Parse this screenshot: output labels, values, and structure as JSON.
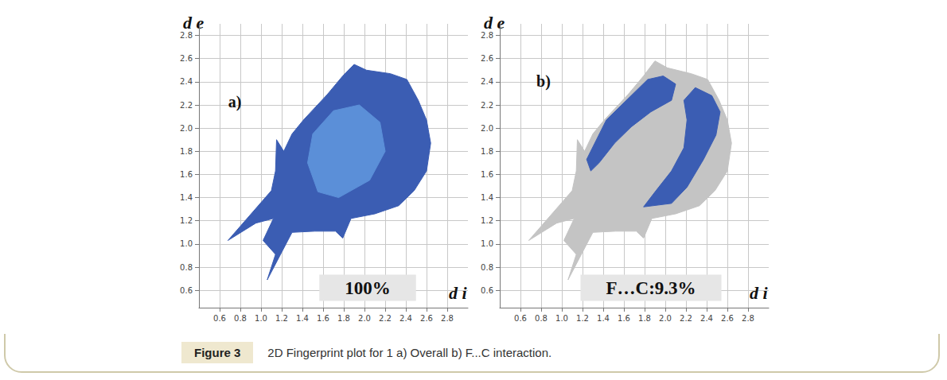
{
  "chart_data": [
    {
      "type": "polygon",
      "panel_label": "a)",
      "annotations": [
        "100%"
      ],
      "xlabel": "d i",
      "ylabel": "d e",
      "xlim": [
        0.4,
        3.0
      ],
      "ylim": [
        0.45,
        2.9
      ],
      "xticks": [
        0.6,
        0.8,
        {
          "value": 1.0,
          "label": "1.0"
        },
        1.2,
        1.4,
        1.6,
        1.8,
        {
          "value": 2.0,
          "label": "2.0"
        },
        2.2,
        2.4,
        2.6,
        2.8
      ],
      "yticks": [
        0.6,
        0.8,
        {
          "value": 1.0,
          "label": "1.0"
        },
        1.2,
        1.4,
        1.6,
        1.8,
        {
          "value": 2.0,
          "label": "2.0"
        },
        2.2,
        2.4,
        2.6,
        2.8
      ],
      "grid": true,
      "series": [
        {
          "color": "#3b5db3",
          "values": [
            [
              0.68,
              1.03
            ],
            [
              1.1,
              1.46
            ],
            [
              1.14,
              1.63
            ],
            [
              1.15,
              1.9
            ],
            [
              1.22,
              1.8
            ],
            [
              1.3,
              1.95
            ],
            [
              1.41,
              2.07
            ],
            [
              1.64,
              2.29
            ],
            [
              1.79,
              2.45
            ],
            [
              1.9,
              2.55
            ],
            [
              2.02,
              2.5
            ],
            [
              2.25,
              2.47
            ],
            [
              2.41,
              2.42
            ],
            [
              2.52,
              2.24
            ],
            [
              2.6,
              2.07
            ],
            [
              2.64,
              1.87
            ],
            [
              2.6,
              1.63
            ],
            [
              2.48,
              1.46
            ],
            [
              2.33,
              1.33
            ],
            [
              2.1,
              1.26
            ],
            [
              1.87,
              1.22
            ],
            [
              1.79,
              1.05
            ],
            [
              1.72,
              1.11
            ],
            [
              1.52,
              1.11
            ],
            [
              1.3,
              1.1
            ],
            [
              1.06,
              0.69
            ],
            [
              1.14,
              0.91
            ],
            [
              1.02,
              1.03
            ],
            [
              1.12,
              1.22
            ],
            [
              0.95,
              1.18
            ]
          ]
        },
        {
          "color": "#5b8fd8",
          "values": [
            [
              1.55,
              1.45
            ],
            [
              1.75,
              1.4
            ],
            [
              2.05,
              1.55
            ],
            [
              2.2,
              1.8
            ],
            [
              2.15,
              2.05
            ],
            [
              1.95,
              2.2
            ],
            [
              1.7,
              2.15
            ],
            [
              1.5,
              1.95
            ],
            [
              1.45,
              1.7
            ]
          ]
        }
      ]
    },
    {
      "type": "polygon",
      "panel_label": "b)",
      "annotations": [
        "F…C:9.3%"
      ],
      "xlabel": "d i",
      "ylabel": "d e",
      "xlim": [
        0.4,
        3.0
      ],
      "ylim": [
        0.45,
        2.9
      ],
      "xticks": [
        0.6,
        0.8,
        {
          "value": 1.0,
          "label": "1.0"
        },
        1.2,
        1.4,
        1.6,
        1.8,
        {
          "value": 2.0,
          "label": "2.0"
        },
        2.2,
        2.4,
        2.6,
        2.8
      ],
      "yticks": [
        0.6,
        0.8,
        {
          "value": 1.0,
          "label": "1.0"
        },
        1.2,
        1.4,
        1.6,
        1.8,
        {
          "value": 2.0,
          "label": "2.0"
        },
        2.2,
        2.4,
        2.6,
        2.8
      ],
      "grid": true,
      "series": [
        {
          "color": "#c4c4c4",
          "values": [
            [
              0.68,
              1.03
            ],
            [
              1.1,
              1.46
            ],
            [
              1.14,
              1.63
            ],
            [
              1.15,
              1.9
            ],
            [
              1.22,
              1.8
            ],
            [
              1.3,
              1.95
            ],
            [
              1.41,
              2.07
            ],
            [
              1.64,
              2.29
            ],
            [
              1.79,
              2.45
            ],
            [
              1.9,
              2.58
            ],
            [
              2.02,
              2.52
            ],
            [
              2.25,
              2.47
            ],
            [
              2.41,
              2.42
            ],
            [
              2.52,
              2.24
            ],
            [
              2.6,
              2.07
            ],
            [
              2.64,
              1.87
            ],
            [
              2.6,
              1.63
            ],
            [
              2.48,
              1.46
            ],
            [
              2.33,
              1.33
            ],
            [
              2.1,
              1.26
            ],
            [
              1.87,
              1.22
            ],
            [
              1.79,
              1.05
            ],
            [
              1.72,
              1.11
            ],
            [
              1.52,
              1.11
            ],
            [
              1.3,
              1.1
            ],
            [
              1.06,
              0.69
            ],
            [
              1.14,
              0.91
            ],
            [
              1.02,
              1.03
            ],
            [
              1.12,
              1.22
            ],
            [
              0.95,
              1.18
            ]
          ]
        },
        {
          "color": "#3b5db3",
          "values": [
            [
              1.24,
              1.73
            ],
            [
              1.43,
              2.07
            ],
            [
              1.67,
              2.28
            ],
            [
              1.83,
              2.42
            ],
            [
              1.98,
              2.45
            ],
            [
              2.1,
              2.38
            ],
            [
              2.06,
              2.24
            ],
            [
              1.86,
              2.14
            ],
            [
              1.67,
              2.01
            ],
            [
              1.51,
              1.87
            ],
            [
              1.36,
              1.7
            ],
            [
              1.28,
              1.63
            ]
          ]
        },
        {
          "color": "#3b5db3",
          "values": [
            [
              2.29,
              2.35
            ],
            [
              2.45,
              2.28
            ],
            [
              2.53,
              2.14
            ],
            [
              2.49,
              1.94
            ],
            [
              2.37,
              1.73
            ],
            [
              2.21,
              1.49
            ],
            [
              2.06,
              1.35
            ],
            [
              1.79,
              1.32
            ],
            [
              1.91,
              1.46
            ],
            [
              2.06,
              1.63
            ],
            [
              2.18,
              1.83
            ],
            [
              2.21,
              2.07
            ],
            [
              2.18,
              2.24
            ]
          ]
        }
      ]
    }
  ],
  "caption": {
    "label": "Figure 3",
    "text": "2D Fingerprint plot for 1 a) Overall b) F...C interaction."
  }
}
